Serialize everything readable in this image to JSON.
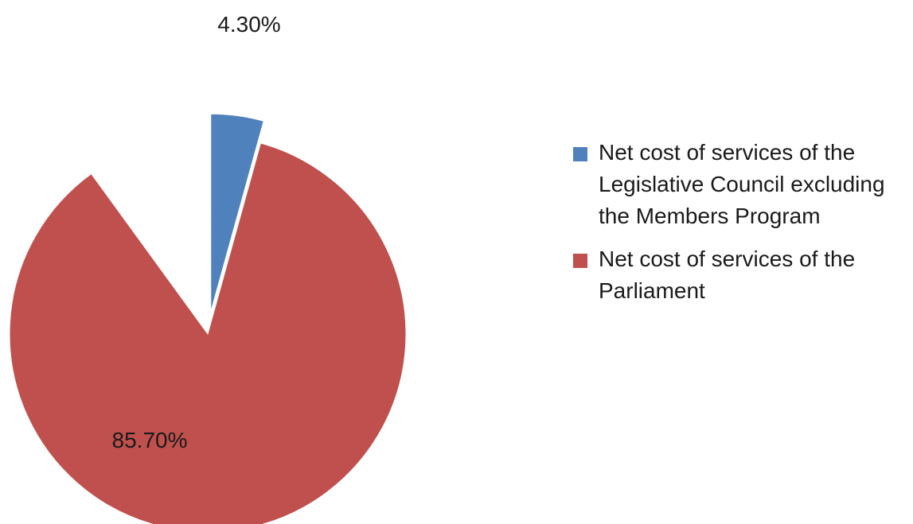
{
  "colors": {
    "council": "#4f81bd",
    "parliament": "#c0504d",
    "background": "#ffffff"
  },
  "legend": {
    "items": [
      {
        "label": "Net cost of services of the Legislative Council excluding the Members Program",
        "color": "#4f81bd"
      },
      {
        "label": "Net cost of services of the Parliament",
        "color": "#c0504d"
      }
    ]
  },
  "chart_data": {
    "type": "pie",
    "title": "",
    "legend_position": "right",
    "slices": [
      {
        "label": "Net cost of services of the Legislative Council excluding the Members Program",
        "value": 4.3,
        "display": "4.30%",
        "color": "#4f81bd",
        "exploded": true
      },
      {
        "label": "Net cost of services of the Parliament",
        "value": 85.7,
        "display": "85.70%",
        "color": "#c0504d",
        "exploded": false
      }
    ]
  }
}
